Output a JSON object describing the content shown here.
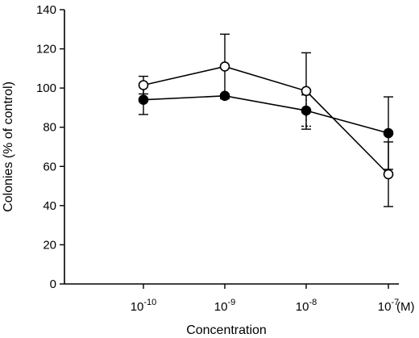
{
  "chart_data": {
    "type": "line",
    "xlabel": "Concentration",
    "ylabel": "Colonies (% of control)",
    "x_unit_label": "(M)",
    "x_categories": [
      {
        "base": "10",
        "exp": "-10"
      },
      {
        "base": "10",
        "exp": "-9"
      },
      {
        "base": "10",
        "exp": "-8"
      },
      {
        "base": "10",
        "exp": "-7"
      }
    ],
    "ylim": [
      0,
      140
    ],
    "yticks": [
      0,
      20,
      40,
      60,
      80,
      100,
      120,
      140
    ],
    "grid": false,
    "series": [
      {
        "marker": "open-circle",
        "values": [
          101.5,
          111,
          98.5,
          56
        ],
        "error": [
          4.5,
          16.5,
          19.5,
          16.5
        ]
      },
      {
        "marker": "filled-circle",
        "values": [
          94,
          96,
          88.5,
          77
        ],
        "error": [
          7.5,
          0,
          8,
          18.5
        ]
      }
    ]
  }
}
